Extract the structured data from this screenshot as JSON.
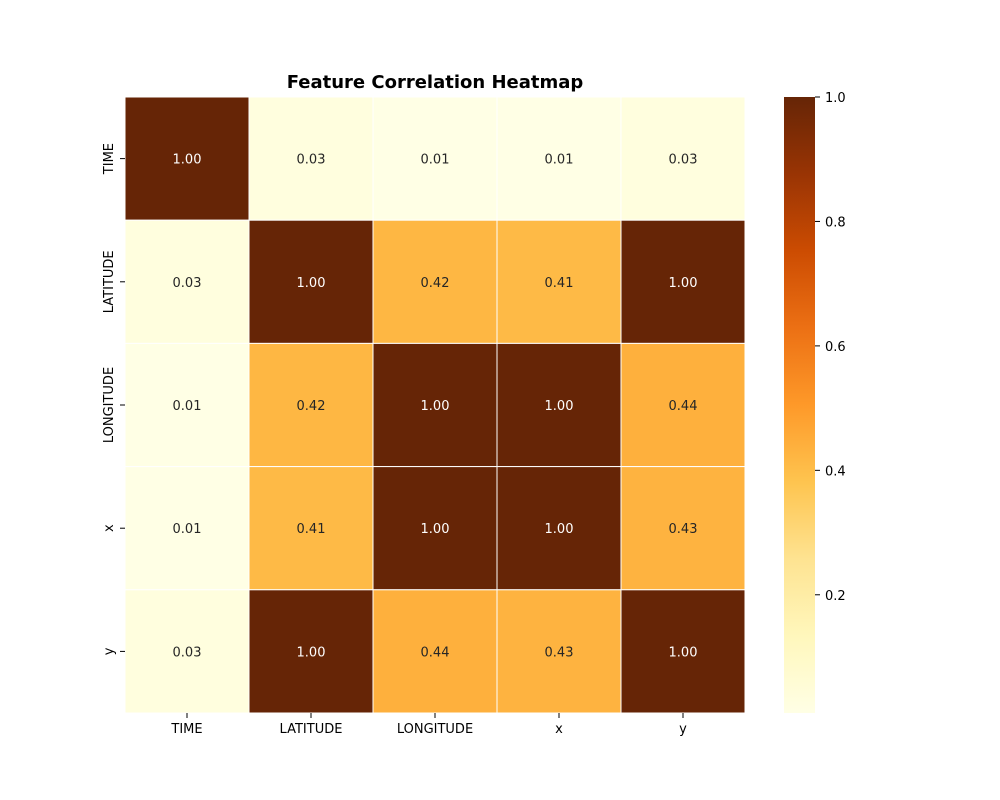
{
  "chart_data": {
    "type": "heatmap",
    "title": "Feature Correlation Heatmap",
    "xlabel": "",
    "ylabel": "",
    "x_categories": [
      "TIME",
      "LATITUDE",
      "LONGITUDE",
      "x",
      "y"
    ],
    "y_categories": [
      "TIME",
      "LATITUDE",
      "LONGITUDE",
      "x",
      "y"
    ],
    "values": [
      [
        1.0,
        0.03,
        0.01,
        0.01,
        0.03
      ],
      [
        0.03,
        1.0,
        0.42,
        0.41,
        1.0
      ],
      [
        0.01,
        0.42,
        1.0,
        1.0,
        0.44
      ],
      [
        0.01,
        0.41,
        1.0,
        1.0,
        0.43
      ],
      [
        0.03,
        1.0,
        0.44,
        0.43,
        1.0
      ]
    ],
    "value_format": "0.00",
    "colorscale": "YlOrBr",
    "value_range": [
      0.01,
      1.0
    ],
    "colorbar": {
      "ticks": [
        0.2,
        0.4,
        0.6,
        0.8,
        1.0
      ],
      "tick_labels": [
        "0.2",
        "0.4",
        "0.6",
        "0.8",
        "1.0"
      ],
      "placement": "right"
    },
    "grid": false,
    "cell_separator_color": "#ffffff",
    "annotation_dark_text_color": "#262626",
    "annotation_light_text_color": "#ffffff"
  }
}
